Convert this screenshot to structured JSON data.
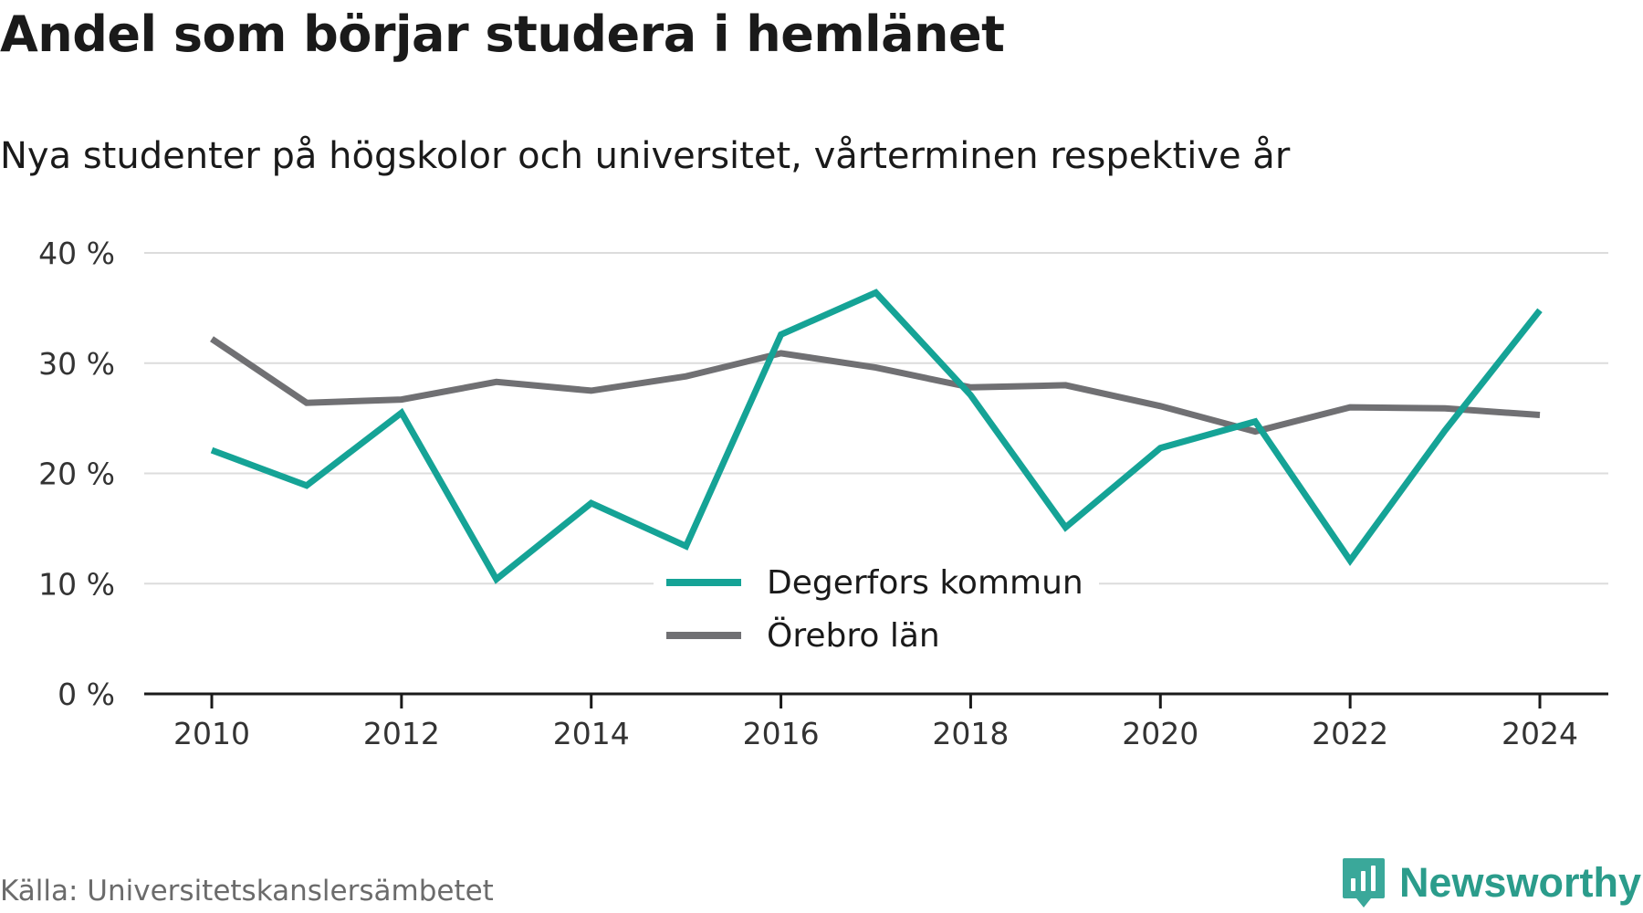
{
  "title": "Andel som börjar studera i hemlänet",
  "subtitle": "Nya studenter på högskolor och universitet, vårterminen respektive år",
  "source": "Källa: Universitetskanslersämbetet",
  "brand": "Newsworthy",
  "colors": {
    "accent": "#15a396",
    "secondary": "#707073",
    "grid": "#dcdcdc",
    "axis": "#1a1a1a",
    "brand": "#2b9c8b"
  },
  "chart_data": {
    "type": "line",
    "title": "Andel som börjar studera i hemlänet",
    "subtitle": "Nya studenter på högskolor och universitet, vårterminen respektive år",
    "x": [
      2010,
      2011,
      2012,
      2013,
      2014,
      2015,
      2016,
      2017,
      2018,
      2019,
      2020,
      2021,
      2022,
      2023,
      2024
    ],
    "x_ticks": [
      "2010",
      "2012",
      "2014",
      "2016",
      "2018",
      "2020",
      "2022",
      "2024"
    ],
    "y_ticks": [
      "0 %",
      "10 %",
      "20 %",
      "30 %",
      "40 %"
    ],
    "xlabel": "",
    "ylabel": "",
    "ylim": [
      0,
      40
    ],
    "grid": true,
    "legend_position": "bottom-center",
    "series": [
      {
        "name": "Degerfors kommun",
        "color": "#15a396",
        "values": [
          22.1,
          18.9,
          25.5,
          10.4,
          17.3,
          13.4,
          32.6,
          36.4,
          27.1,
          15.1,
          22.3,
          24.7,
          12.1,
          23.9,
          34.8
        ]
      },
      {
        "name": "Örebro län",
        "color": "#707073",
        "values": [
          32.2,
          26.4,
          26.7,
          28.3,
          27.5,
          28.8,
          30.9,
          29.6,
          27.8,
          28.0,
          26.1,
          23.8,
          26.0,
          25.9,
          25.3
        ]
      }
    ]
  }
}
